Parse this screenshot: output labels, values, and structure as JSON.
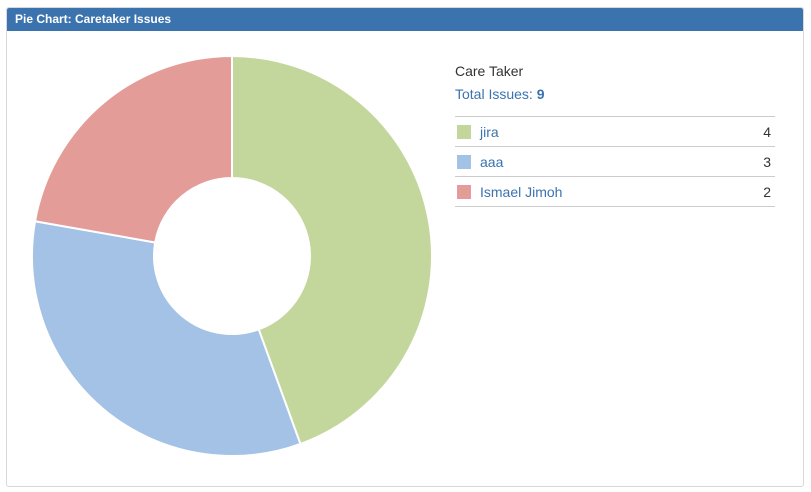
{
  "header": {
    "title": "Pie Chart: Caretaker Issues",
    "bg_color": "#3b73af"
  },
  "legend": {
    "group_label": "Care Taker",
    "total_label": "Total Issues:",
    "total_value": "9"
  },
  "chart_data": {
    "type": "pie",
    "title": "Pie Chart: Caretaker Issues",
    "donut": true,
    "start_angle_deg": 0,
    "direction": "clockwise",
    "total": 9,
    "inner_radius_ratio": 0.39,
    "legend_position": "right",
    "slices": [
      {
        "label": "jira",
        "value": 4,
        "color": "#c3d69b"
      },
      {
        "label": "aaa",
        "value": 3,
        "color": "#a3c2e5"
      },
      {
        "label": "Ismael Jimoh",
        "value": 2,
        "color": "#e49c98"
      }
    ]
  }
}
